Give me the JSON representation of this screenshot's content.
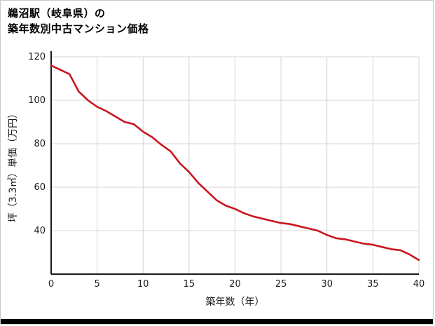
{
  "title": {
    "line1": "鵜沼駅（岐阜県）の",
    "line2": "築年数別中古マンション価格"
  },
  "colors": {
    "line": "#c8161e",
    "grid": "#d4d4d4",
    "axis": "#1a1a1a",
    "text": "#1a1a1a",
    "bottom_bar": "#000000"
  },
  "chart_data": {
    "type": "line",
    "title": "鵜沼駅（岐阜県）の築年数別中古マンション価格",
    "xlabel": "築年数（年）",
    "ylabel": "坪（3.3㎡）単価（万円）",
    "xlim": [
      0,
      40
    ],
    "ylim": [
      20,
      120
    ],
    "xticks": [
      0,
      5,
      10,
      15,
      20,
      25,
      30,
      35,
      40
    ],
    "yticks": [
      40,
      60,
      80,
      100,
      120
    ],
    "grid": true,
    "legend": false,
    "x": [
      0,
      1,
      2,
      3,
      4,
      5,
      6,
      7,
      8,
      9,
      10,
      11,
      12,
      13,
      14,
      15,
      16,
      17,
      18,
      19,
      20,
      21,
      22,
      23,
      24,
      25,
      26,
      27,
      28,
      29,
      30,
      31,
      32,
      33,
      34,
      35,
      36,
      37,
      38,
      39,
      40
    ],
    "values": [
      116,
      114,
      112,
      104,
      100,
      97,
      95,
      92.5,
      90,
      89,
      85.5,
      83,
      79.5,
      76.5,
      71,
      67,
      62,
      58,
      54,
      51.5,
      50,
      48,
      46.5,
      45.5,
      44.5,
      43.5,
      43,
      42,
      41,
      40,
      38,
      36.5,
      36,
      35,
      34,
      33.5,
      32.5,
      31.5,
      31,
      29,
      26.5
    ]
  }
}
